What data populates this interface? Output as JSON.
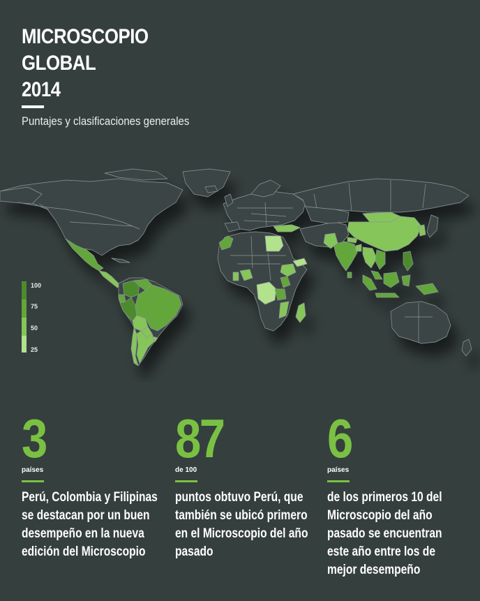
{
  "header": {
    "title_lines": [
      "MICROSCOPIO",
      "GLOBAL",
      "2014"
    ],
    "subtitle": "Puntajes y clasificaciones generales"
  },
  "legend": {
    "labels": [
      "100",
      "75",
      "50",
      "25"
    ],
    "colors": [
      "#4e8a2e",
      "#64a63a",
      "#86c55a",
      "#b2e28c"
    ]
  },
  "colors": {
    "background": "#353f3e",
    "land": "#3b4544",
    "border": "#8c9796",
    "accent": "#7ac143"
  },
  "stats": [
    {
      "number": "3",
      "unit": "países",
      "desc_lines": [
        "Perú, Colombia y Filipinas",
        "se destacan por un buen",
        "desempeño en la nueva",
        "edición del Microscopio"
      ]
    },
    {
      "number": "87",
      "unit": "de 100",
      "desc_lines": [
        "puntos obtuvo Perú, que",
        "también se ubicó primero",
        "en el Microscopio del año",
        "pasado"
      ]
    },
    {
      "number": "6",
      "unit": "países",
      "desc_lines": [
        "de los primeros 10 del",
        "Microscopio del año",
        "pasado se encuentran",
        "este año entre los de",
        "mejor desempeño"
      ]
    }
  ]
}
